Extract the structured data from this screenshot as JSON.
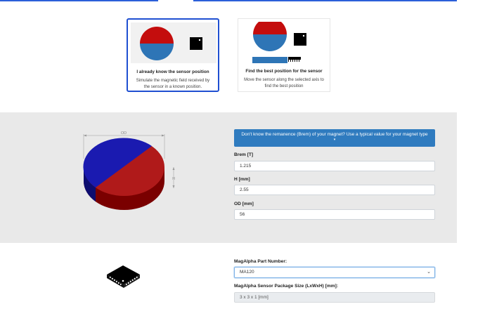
{
  "modes": [
    {
      "title": "I already know the sensor position",
      "description": "Simulate the magnetic field received by the sensor in a known position.",
      "selected": true
    },
    {
      "title": "Find the best position for the sensor",
      "description": "Move the sensor along the selected axis to find the best position",
      "selected": false
    }
  ],
  "magnet": {
    "dimension_labels": {
      "od": "OD",
      "h": "H"
    },
    "colors": {
      "north": "#1a1ab0",
      "south": "#b01a1a"
    }
  },
  "remanence_banner": {
    "text": "Don't know the remanence (Brem) of your magnet? Use a typical value for your magnet type",
    "caret": "▾"
  },
  "fields": {
    "brem": {
      "label": "Brem [T]",
      "value": "1.215"
    },
    "h": {
      "label": "H [mm]",
      "value": "2.55"
    },
    "od": {
      "label": "OD [mm]",
      "value": "56"
    }
  },
  "sensor": {
    "part_label": "MagAlpha Part Number:",
    "part_value": "MA120",
    "package_label": "MagAlpha Sensor Package Size (LxWxH) [mm]:",
    "package_value": "3 x 3 x 1 [mm]"
  },
  "colors": {
    "accent": "#2f7bbf",
    "selected_border": "#1f4fd1",
    "section_grey": "#e9e9e9"
  }
}
